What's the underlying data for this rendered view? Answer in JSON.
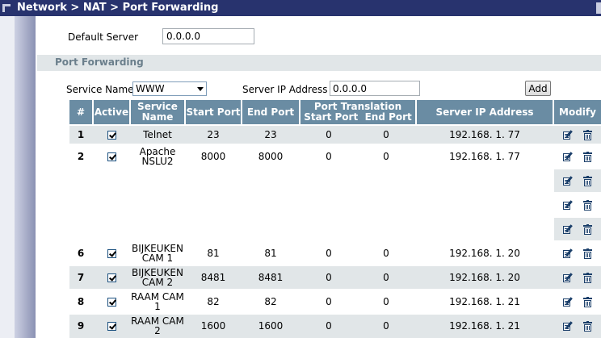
{
  "title": "Network > NAT > Port Forwarding",
  "default_server": {
    "label": "Default Server",
    "value": "0.0.0.0"
  },
  "section_title": "Port Forwarding",
  "form": {
    "service_name_label": "Service Name",
    "service_name_value": "WWW",
    "server_ip_label": "Server IP Address",
    "server_ip_value": "0.0.0.0",
    "add_label": "Add"
  },
  "table": {
    "headers": {
      "num": "#",
      "active": "Active",
      "service_name": "Service Name",
      "start_port": "Start Port",
      "end_port": "End Port",
      "port_translation": "Port Translation",
      "pt_start": "Start Port",
      "pt_end": "End Port",
      "server_ip": "Server IP Address",
      "modify": "Modify"
    },
    "rows": [
      {
        "num": "1",
        "name1": "Telnet",
        "name2": "",
        "start": "23",
        "end": "23",
        "pt_start": "0",
        "pt_end": "0",
        "ip": "192.168. 1. 77"
      },
      {
        "num": "2",
        "name1": "Apache",
        "name2": "NSLU2",
        "start": "8000",
        "end": "8000",
        "pt_start": "0",
        "pt_end": "0",
        "ip": "192.168. 1. 77"
      },
      {
        "num": "6",
        "name1": "BIJKEUKEN",
        "name2": "CAM 1",
        "start": "81",
        "end": "81",
        "pt_start": "0",
        "pt_end": "0",
        "ip": "192.168. 1. 20"
      },
      {
        "num": "7",
        "name1": "BIJKEUKEN",
        "name2": "CAM 2",
        "start": "8481",
        "end": "8481",
        "pt_start": "0",
        "pt_end": "0",
        "ip": "192.168. 1. 20"
      },
      {
        "num": "8",
        "name1": "RAAM CAM",
        "name2": "1",
        "start": "82",
        "end": "82",
        "pt_start": "0",
        "pt_end": "0",
        "ip": "192.168. 1. 21"
      },
      {
        "num": "9",
        "name1": "RAAM CAM",
        "name2": "2",
        "start": "1600",
        "end": "1600",
        "pt_start": "0",
        "pt_end": "0",
        "ip": "192.168. 1. 21"
      }
    ],
    "icons": {
      "edit": "edit-icon",
      "delete": "trash-icon"
    }
  }
}
